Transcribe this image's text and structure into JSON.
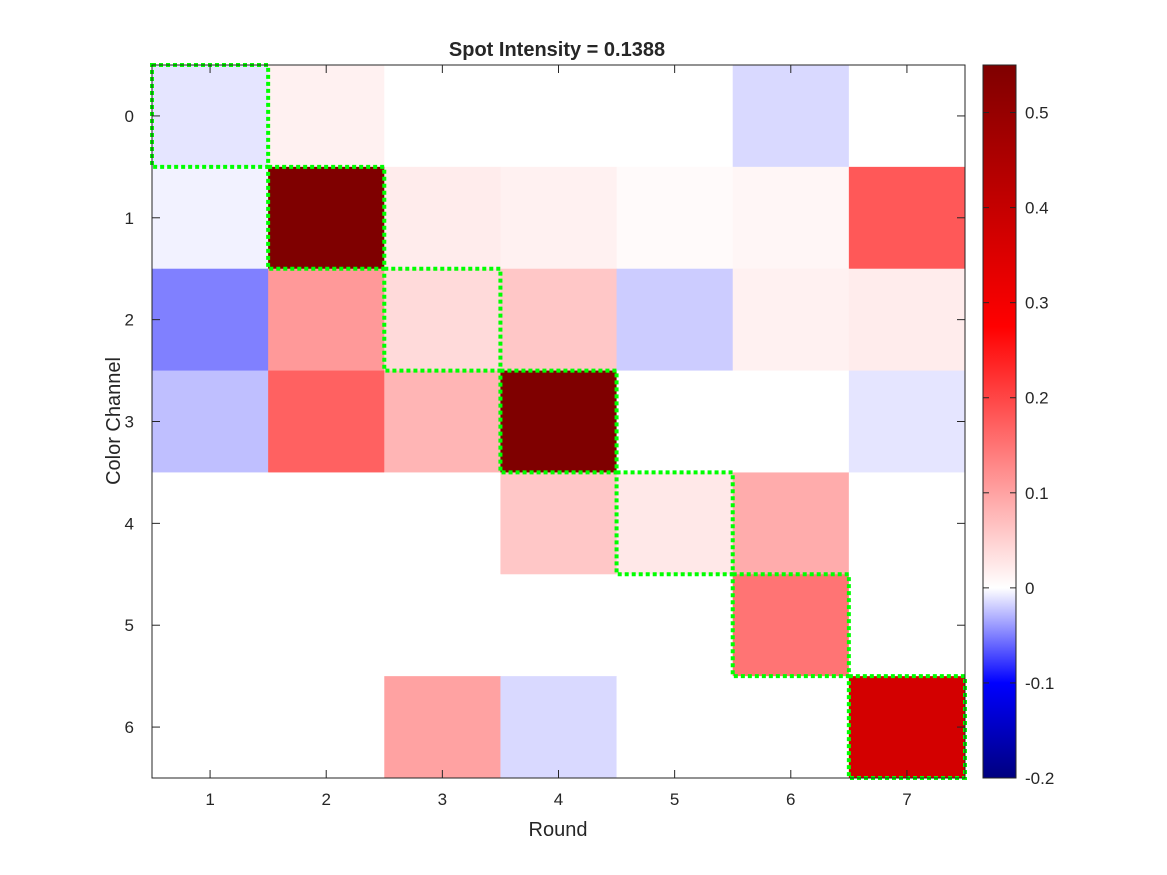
{
  "chart_data": {
    "type": "heatmap",
    "title": "Spot Intensity = 0.1388",
    "xlabel": "Round",
    "ylabel": "Color Channel",
    "x_categories": [
      "1",
      "2",
      "3",
      "4",
      "5",
      "6",
      "7"
    ],
    "y_categories": [
      "0",
      "1",
      "2",
      "3",
      "4",
      "5",
      "6"
    ],
    "values": [
      [
        -0.01,
        0.015,
        0.0,
        0.0,
        0.0,
        -0.015,
        0.0
      ],
      [
        -0.005,
        0.55,
        0.02,
        0.015,
        0.005,
        0.01,
        0.18
      ],
      [
        -0.05,
        0.11,
        0.04,
        0.06,
        -0.02,
        0.015,
        0.02
      ],
      [
        -0.025,
        0.17,
        0.08,
        0.55,
        0.0,
        0.0,
        -0.01
      ],
      [
        0.0,
        0.0,
        0.0,
        0.06,
        0.025,
        0.09,
        0.0
      ],
      [
        0.0,
        0.0,
        0.0,
        0.0,
        0.0,
        0.15,
        0.0
      ],
      [
        0.0,
        0.0,
        0.1,
        -0.015,
        0.0,
        0.0,
        0.37
      ]
    ],
    "highlighted_cells": [
      {
        "round": "1",
        "channel": "0"
      },
      {
        "round": "2",
        "channel": "1"
      },
      {
        "round": "3",
        "channel": "2"
      },
      {
        "round": "4",
        "channel": "3"
      },
      {
        "round": "5",
        "channel": "4"
      },
      {
        "round": "6",
        "channel": "5"
      },
      {
        "round": "7",
        "channel": "6"
      }
    ],
    "highlight_color": "#00ff00",
    "colorbar": {
      "range": [
        -0.2,
        0.55
      ],
      "ticks": [
        "-0.2",
        "-0.1",
        "0",
        "0.1",
        "0.2",
        "0.3",
        "0.4",
        "0.5"
      ],
      "tick_values": [
        -0.2,
        -0.1,
        0,
        0.1,
        0.2,
        0.3,
        0.4,
        0.5
      ],
      "colors": [
        "#00007f",
        "#0000ff",
        "#ffffff",
        "#ff0000",
        "#7f0000"
      ]
    },
    "grid": false,
    "legend": "none"
  }
}
